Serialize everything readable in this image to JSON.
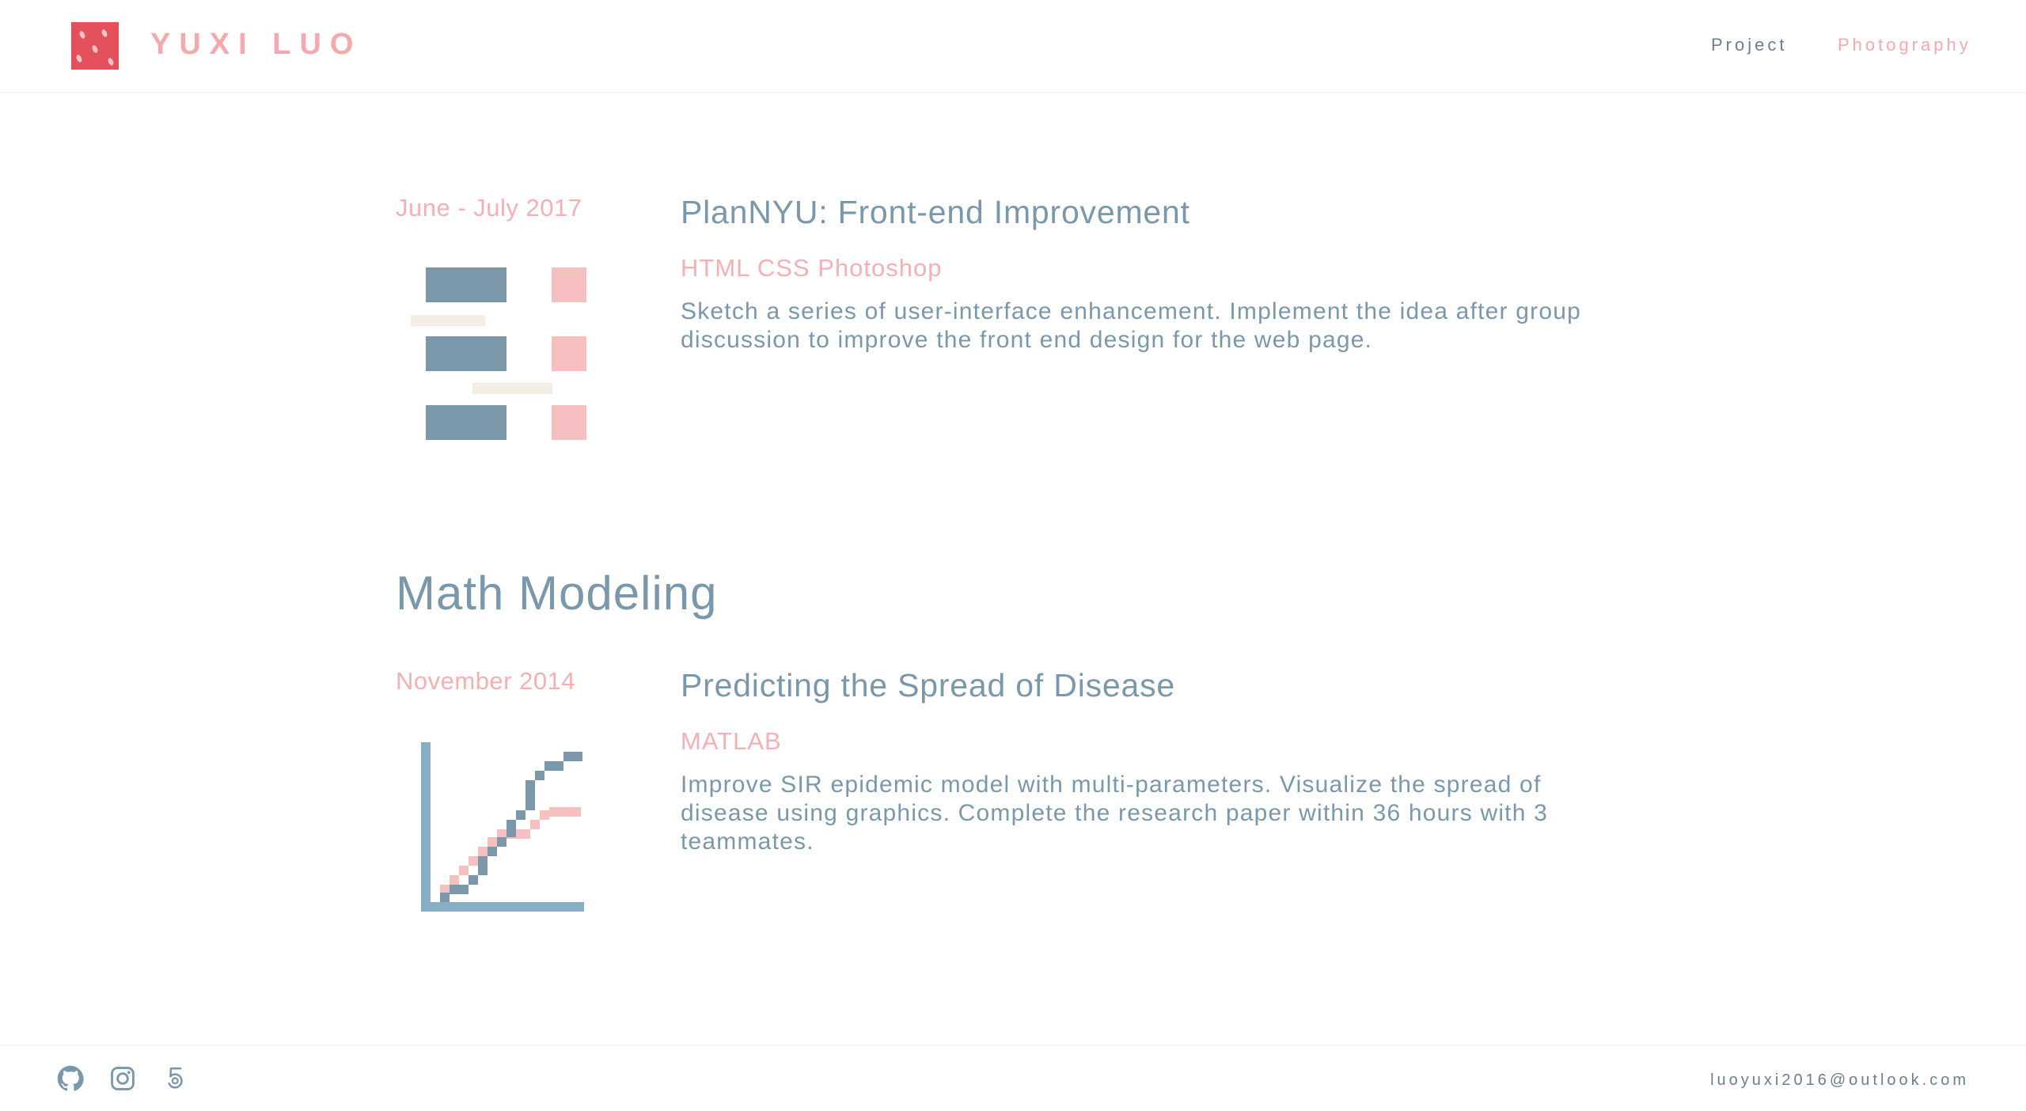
{
  "header": {
    "logo_text": "YUXI LUO",
    "nav": [
      {
        "label": "Project"
      },
      {
        "label": "Photography"
      }
    ]
  },
  "sections": [
    {
      "title": "",
      "projects": [
        {
          "date": "June - July 2017",
          "title": "PlanNYU: Front-end Improvement",
          "tech": "HTML CSS Photoshop",
          "description": "Sketch a series of user-interface enhancement. Implement the idea after group discussion to improve the front end design for the web page.",
          "illustration_icon": "layout-blocks-icon"
        }
      ]
    },
    {
      "title": "Math Modeling",
      "projects": [
        {
          "date": "November 2014",
          "title": "Predicting the Spread of Disease",
          "tech": "MATLAB",
          "description": "Improve SIR epidemic model with multi-parameters. Visualize the spread of disease using graphics. Complete the research paper within 36 hours with 3 teammates.",
          "illustration_icon": "line-graph-icon"
        }
      ]
    }
  ],
  "footer": {
    "icons": [
      "github-icon",
      "instagram-icon",
      "500px-icon"
    ],
    "email": "luoyuxi2016@outlook.com"
  },
  "colors": {
    "accent_pink": "#f4a9ae",
    "slate_blue": "#7a98ab",
    "logo_red": "#e4505c",
    "beige": "#f3ede3"
  }
}
